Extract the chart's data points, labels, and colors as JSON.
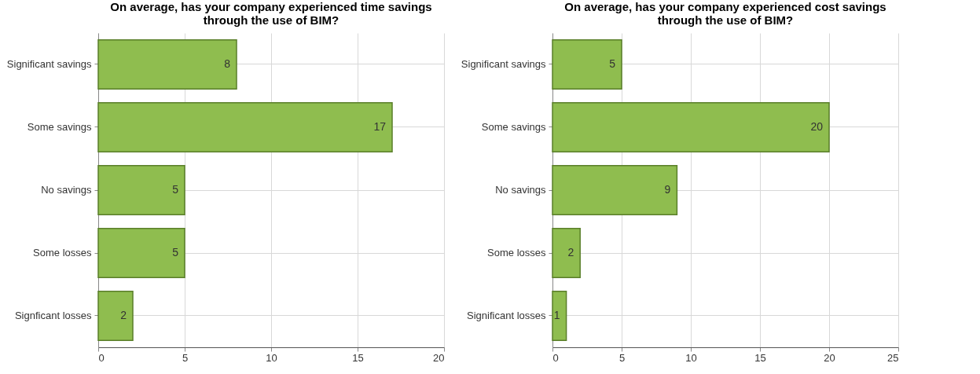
{
  "chart_data": [
    {
      "type": "bar",
      "orientation": "horizontal",
      "title": "On average, has your company experienced time savings through the use of BIM?",
      "categories": [
        "Significant savings",
        "Some savings",
        "No savings",
        "Some losses",
        "Signficant losses"
      ],
      "values": [
        8,
        17,
        5,
        5,
        2
      ],
      "color": "#8fbd4f",
      "xlim": [
        0,
        20
      ],
      "xticks": [
        0,
        5,
        10,
        15,
        20
      ],
      "grid": true,
      "data_labels": true
    },
    {
      "type": "bar",
      "orientation": "horizontal",
      "title": "On average, has your company experienced cost savings through the use of BIM?",
      "categories": [
        "Significant savings",
        "Some savings",
        "No savings",
        "Some losses",
        "Significant losses"
      ],
      "values": [
        5,
        20,
        9,
        2,
        1
      ],
      "color": "#8fbd4f",
      "xlim": [
        0,
        25
      ],
      "xticks": [
        0,
        5,
        10,
        15,
        20,
        25
      ],
      "grid": true,
      "data_labels": true
    }
  ]
}
